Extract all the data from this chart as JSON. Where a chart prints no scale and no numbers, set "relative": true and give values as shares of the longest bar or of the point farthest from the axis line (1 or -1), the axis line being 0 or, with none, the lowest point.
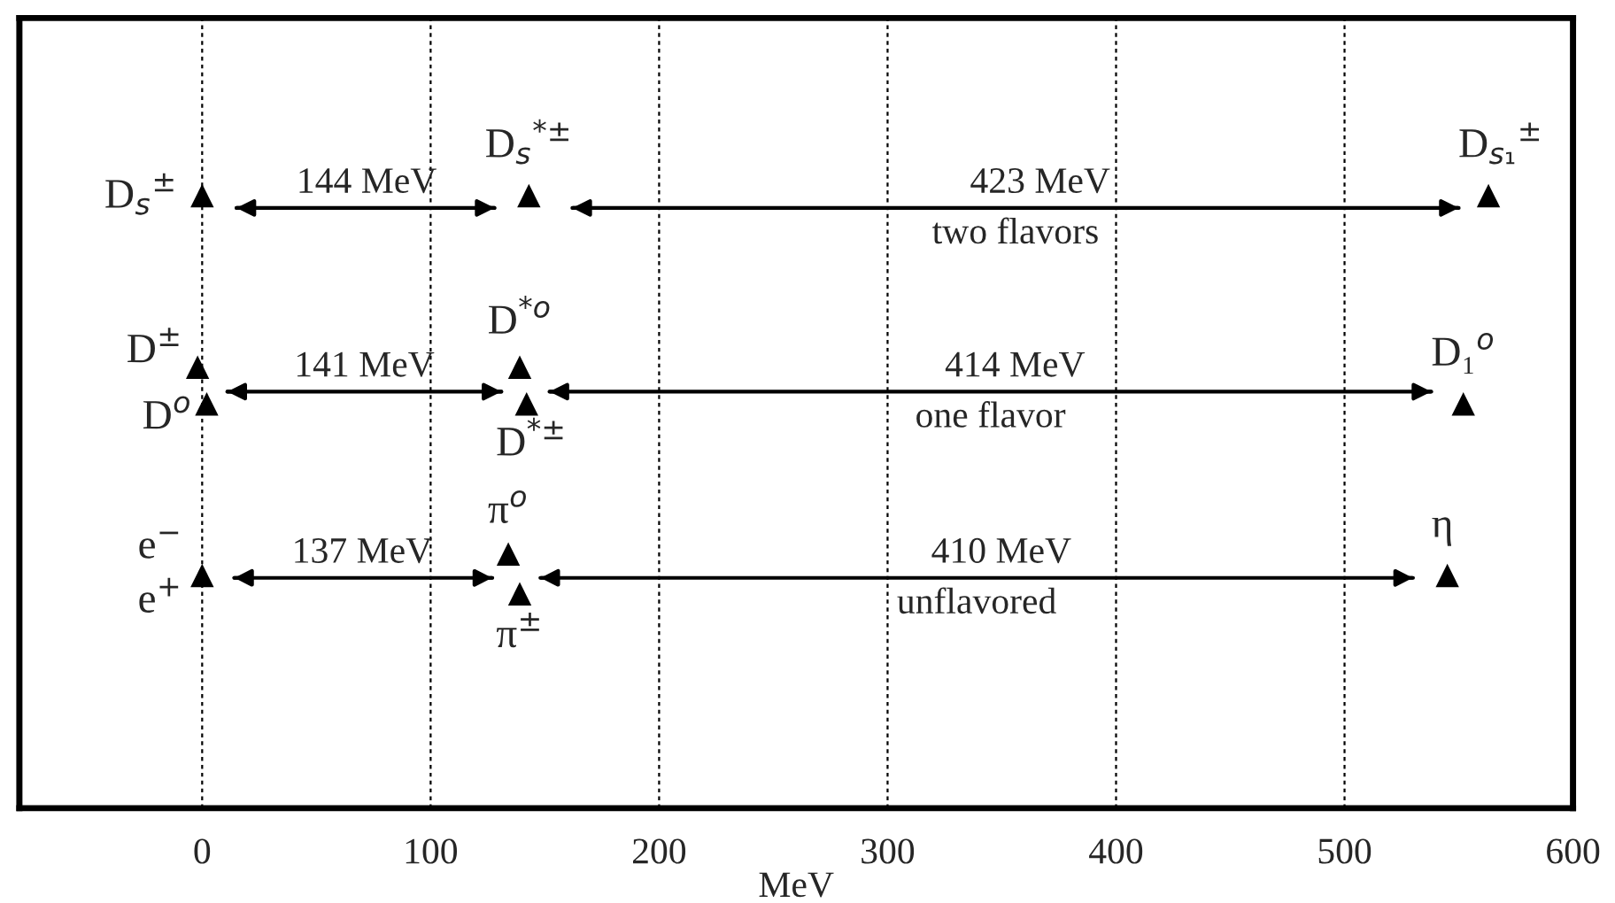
{
  "chart_data": {
    "type": "scatter",
    "relative": true,
    "xlabel": "MeV",
    "xlim": [
      -80,
      600
    ],
    "xticks": [
      0,
      100,
      200,
      300,
      400,
      500,
      600
    ],
    "grid": "x",
    "tick_labels": "x",
    "series": [
      {
        "marker": "triangle",
        "color": "#000000",
        "x": [
          0,
          143,
          563,
          -2,
          2,
          139,
          142,
          552,
          0,
          134,
          139,
          545
        ],
        "values": [
          1.0,
          1.0,
          1.0,
          0.72,
          0.66,
          0.72,
          0.66,
          0.66,
          0.38,
          0.415,
          0.35,
          0.38
        ]
      },
      {
        "type": "line",
        "color": "#000000",
        "x": [
          15,
          128
        ],
        "values": [
          0.98,
          0.98
        ]
      },
      {
        "type": "line",
        "color": "#000000",
        "x": [
          162,
          550
        ],
        "values": [
          0.98,
          0.98
        ]
      },
      {
        "type": "line",
        "color": "#000000",
        "x": [
          11,
          131
        ],
        "values": [
          0.68,
          0.68
        ]
      },
      {
        "type": "line",
        "color": "#000000",
        "x": [
          152,
          538
        ],
        "values": [
          0.68,
          0.68
        ]
      },
      {
        "type": "line",
        "color": "#000000",
        "x": [
          14,
          127
        ],
        "values": [
          0.376,
          0.376
        ]
      },
      {
        "type": "line",
        "color": "#000000",
        "x": [
          148,
          530
        ],
        "values": [
          0.376,
          0.376
        ]
      }
    ],
    "annotations": [
      {
        "text": "D$_{s}$$^{±}$",
        "x": 0,
        "y": 1.0
      },
      {
        "text": "D$_{s}$$^{*±}$",
        "x": 143,
        "y": 1.0
      },
      {
        "text": "D$_{s₁}$$^{±}$",
        "x": 563,
        "y": 1.0
      },
      {
        "text": "D$^{±}$",
        "x": -2,
        "y": 0.72
      },
      {
        "text": "D$^{o}$",
        "x": 2,
        "y": 0.66
      },
      {
        "text": "D$^{*o}$",
        "x": 139,
        "y": 0.72
      },
      {
        "text": "D$^{*±}$",
        "x": 142,
        "y": 0.66
      },
      {
        "text": "D₁$^{o}$",
        "x": 552,
        "y": 0.66
      },
      {
        "text": "e$^{−}$",
        "x": 0,
        "y": 0.38
      },
      {
        "text": "e$^{+}$",
        "x": 0,
        "y": 0.38
      },
      {
        "text": "π$^{o}$",
        "x": 134,
        "y": 0.415
      },
      {
        "text": "π$^{±}$",
        "x": 139,
        "y": 0.35
      },
      {
        "text": "η",
        "x": 545,
        "y": 0.38
      },
      {
        "text": "144 MeV",
        "x": 72,
        "y": 0.98
      },
      {
        "text": "423 MeV",
        "x": 356,
        "y": 0.98
      },
      {
        "text": "141 MeV",
        "x": 71,
        "y": 0.68
      },
      {
        "text": "414 MeV",
        "x": 345,
        "y": 0.68
      },
      {
        "text": "137 MeV",
        "x": 70,
        "y": 0.376
      },
      {
        "text": "410 MeV",
        "x": 339,
        "y": 0.376
      },
      {
        "text": "two flavors",
        "x": 356,
        "y": 0.98
      },
      {
        "text": "one flavor",
        "x": 345,
        "y": 0.68
      },
      {
        "text": "unflavored",
        "x": 339,
        "y": 0.376
      }
    ]
  }
}
